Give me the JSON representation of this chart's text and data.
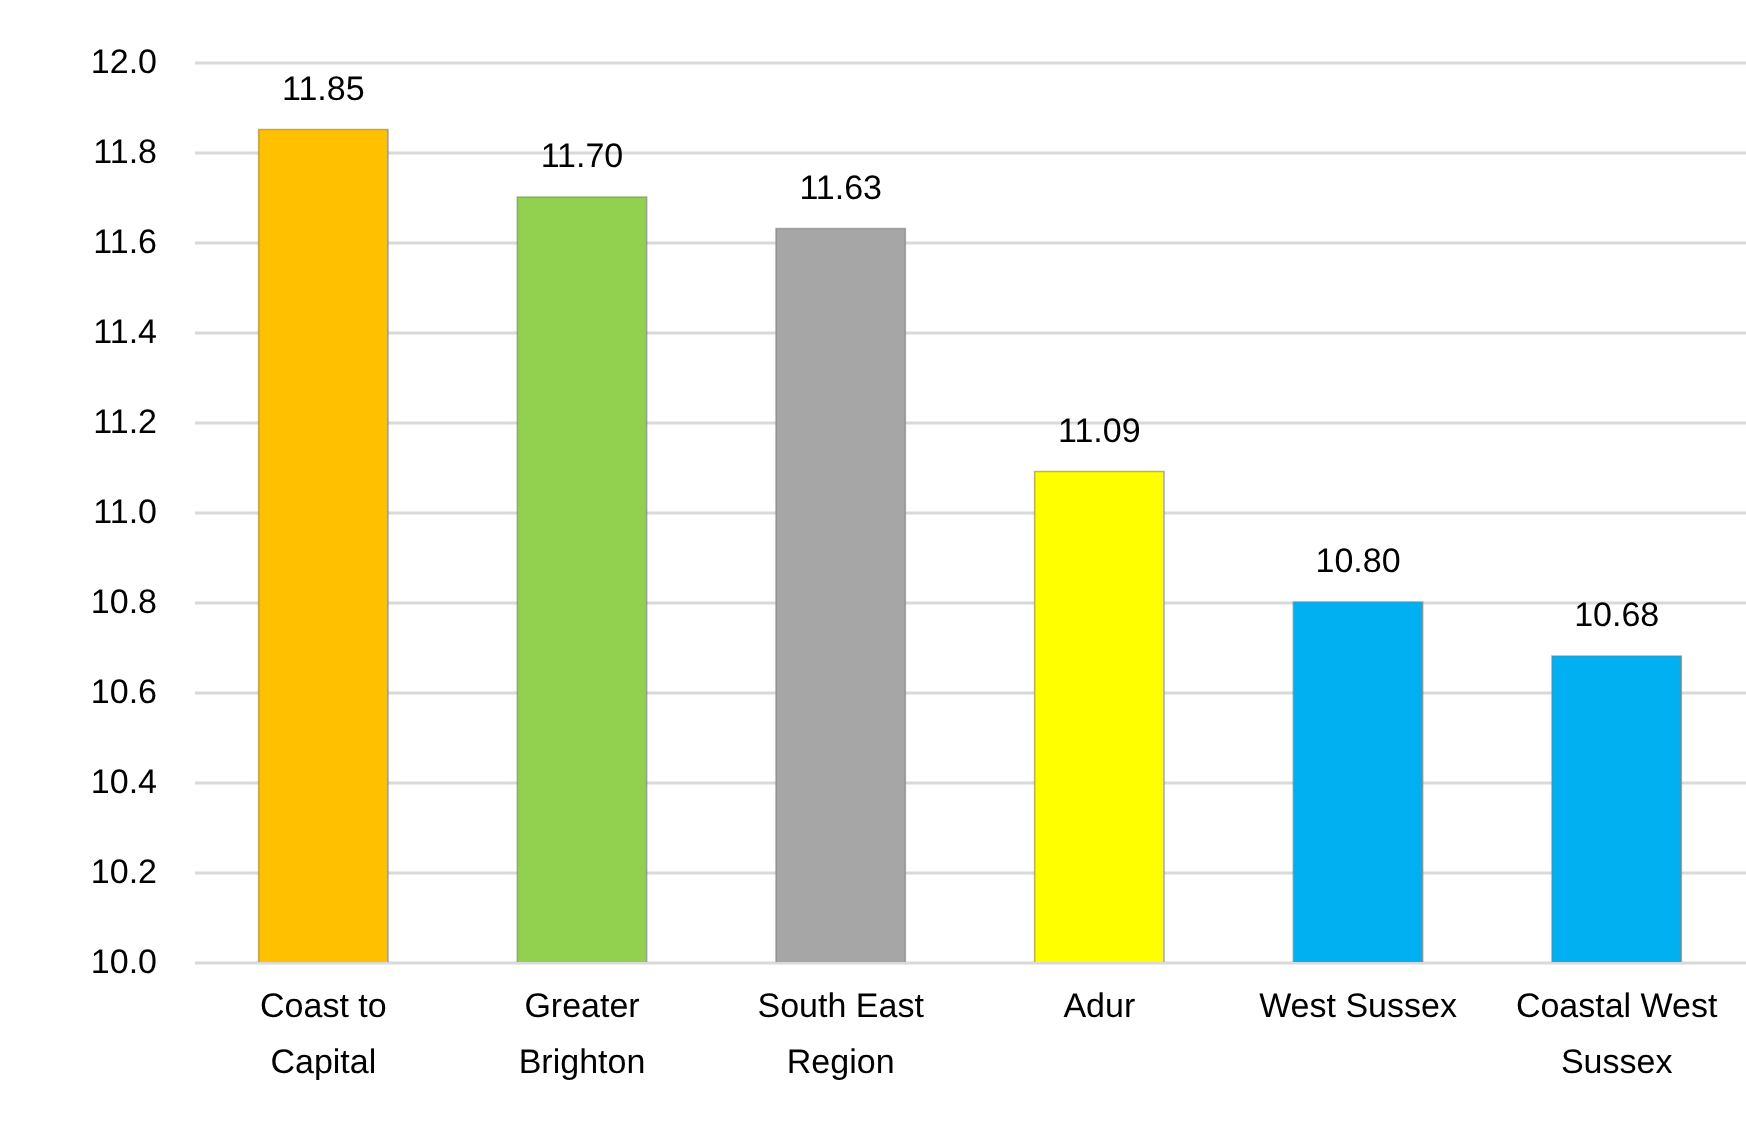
{
  "chart_data": {
    "type": "bar",
    "categories": [
      "Coast to Capital",
      "Greater Brighton",
      "South East Region",
      "Adur",
      "West Sussex",
      "Coastal West Sussex"
    ],
    "values": [
      11.85,
      11.7,
      11.63,
      11.09,
      10.8,
      10.68
    ],
    "value_labels": [
      "11.85",
      "11.70",
      "11.63",
      "11.09",
      "10.80",
      "10.68"
    ],
    "colors": [
      "#ffc000",
      "#92d050",
      "#a6a6a6",
      "#ffff00",
      "#00b0f0",
      "#00b0f0"
    ],
    "ylim": [
      10.0,
      12.0
    ],
    "yticks": [
      {
        "value": 10.0,
        "label": "10.0"
      },
      10.2,
      10.4,
      10.6,
      10.8,
      {
        "value": 11.0,
        "label": "11.0"
      },
      11.2,
      11.4,
      11.6,
      11.8,
      {
        "value": 12.0,
        "label": "12.0"
      }
    ],
    "grid": "y"
  }
}
